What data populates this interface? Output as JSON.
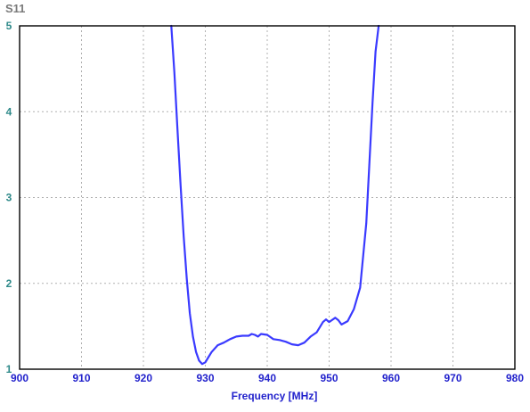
{
  "chart_data": {
    "type": "line",
    "title": "S11",
    "xlabel": "Frequency [MHz]",
    "ylabel": "",
    "xlim": [
      900,
      980
    ],
    "ylim": [
      1,
      5
    ],
    "x_ticks": [
      900,
      910,
      920,
      930,
      940,
      950,
      960,
      970,
      980
    ],
    "y_ticks": [
      1,
      2,
      3,
      4,
      5
    ],
    "grid": true,
    "colors": {
      "line": "#3a3aff",
      "title": "#7a7a7a",
      "ytick": "#2f8a8a",
      "xtick": "#2222cc",
      "xlabel": "#2222cc",
      "grid": "#b0b0b0",
      "frame": "#000000"
    },
    "series": [
      {
        "x": [
          924.5,
          925.0,
          925.5,
          926.0,
          926.5,
          927.0,
          927.5,
          928.0,
          928.5,
          929.0,
          929.5,
          930.0,
          930.5,
          931.0,
          932.0,
          933.0,
          934.0,
          935.0,
          936.0,
          937.0,
          937.5,
          938.0,
          938.5,
          939.0,
          940.0,
          941.0,
          942.0,
          943.0,
          944.0,
          945.0,
          946.0,
          947.0,
          948.0,
          949.0,
          949.5,
          950.0,
          951.0,
          951.5,
          952.0,
          953.0,
          954.0,
          955.0,
          956.0,
          956.5,
          957.0,
          957.5,
          958.0
        ],
        "values": [
          5.0,
          4.45,
          3.8,
          3.15,
          2.55,
          2.05,
          1.65,
          1.38,
          1.2,
          1.1,
          1.06,
          1.08,
          1.14,
          1.2,
          1.28,
          1.31,
          1.35,
          1.38,
          1.39,
          1.39,
          1.41,
          1.4,
          1.38,
          1.41,
          1.4,
          1.35,
          1.34,
          1.32,
          1.29,
          1.28,
          1.31,
          1.38,
          1.43,
          1.55,
          1.58,
          1.55,
          1.6,
          1.57,
          1.52,
          1.56,
          1.7,
          1.95,
          2.7,
          3.4,
          4.1,
          4.7,
          5.0
        ]
      }
    ]
  }
}
